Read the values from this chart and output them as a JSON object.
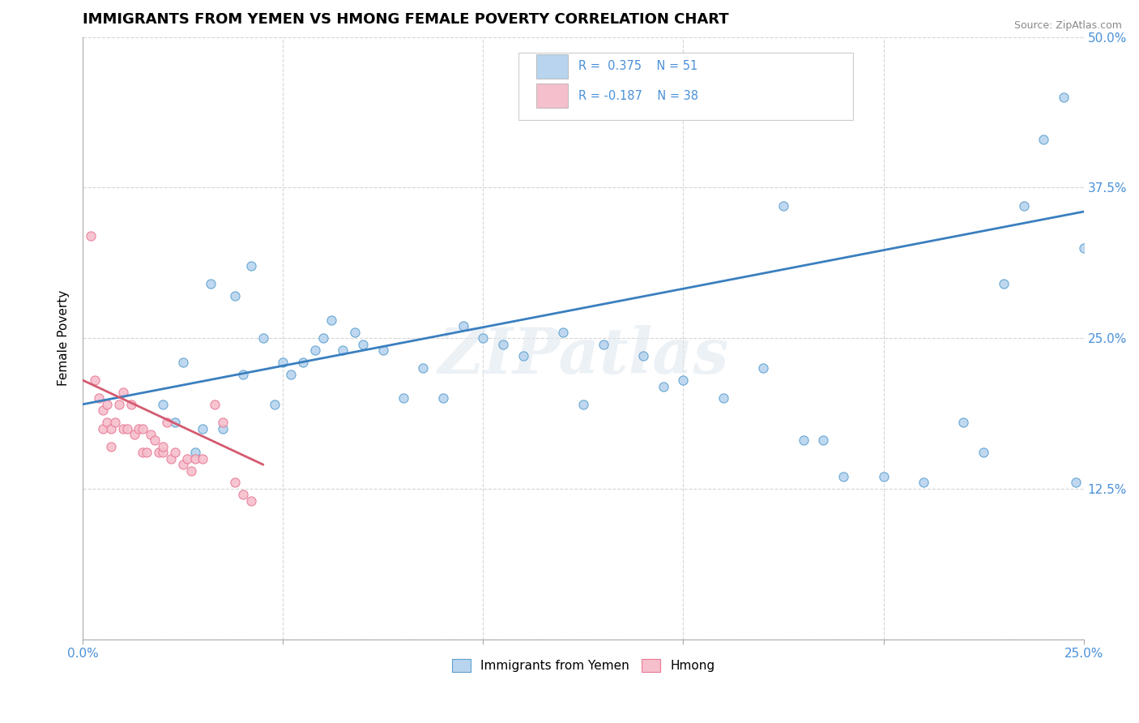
{
  "title": "IMMIGRANTS FROM YEMEN VS HMONG FEMALE POVERTY CORRELATION CHART",
  "source": "Source: ZipAtlas.com",
  "ylabel_label": "Female Poverty",
  "x_ticks": [
    0.0,
    0.05,
    0.1,
    0.15,
    0.2,
    0.25
  ],
  "x_tick_labels": [
    "0.0%",
    "",
    "",
    "",
    "",
    "25.0%"
  ],
  "y_ticks": [
    0.0,
    0.125,
    0.25,
    0.375,
    0.5
  ],
  "y_tick_labels_right": [
    "",
    "12.5%",
    "25.0%",
    "37.5%",
    "50.0%"
  ],
  "xlim": [
    0.0,
    0.25
  ],
  "ylim": [
    0.0,
    0.5
  ],
  "legend_r1": "R =  0.375",
  "legend_n1": "N = 51",
  "legend_r2": "R = -0.187",
  "legend_n2": "N = 38",
  "blue_fill": "#b8d4ee",
  "blue_edge": "#5da0d0",
  "pink_fill": "#f5bfcc",
  "pink_edge": "#e87a95",
  "line_blue": "#3a7fbf",
  "line_pink": "#d45a70",
  "watermark": "ZIPatlas",
  "blue_x": [
    0.02,
    0.023,
    0.025,
    0.028,
    0.03,
    0.032,
    0.035,
    0.038,
    0.04,
    0.042,
    0.045,
    0.048,
    0.05,
    0.052,
    0.055,
    0.058,
    0.06,
    0.062,
    0.065,
    0.068,
    0.07,
    0.075,
    0.08,
    0.085,
    0.09,
    0.095,
    0.1,
    0.105,
    0.11,
    0.12,
    0.125,
    0.13,
    0.14,
    0.145,
    0.15,
    0.16,
    0.17,
    0.175,
    0.18,
    0.185,
    0.19,
    0.2,
    0.21,
    0.22,
    0.225,
    0.23,
    0.235,
    0.24,
    0.245,
    0.248,
    0.25
  ],
  "blue_y": [
    0.195,
    0.18,
    0.23,
    0.155,
    0.175,
    0.295,
    0.175,
    0.285,
    0.22,
    0.31,
    0.25,
    0.195,
    0.23,
    0.22,
    0.23,
    0.24,
    0.25,
    0.265,
    0.24,
    0.255,
    0.245,
    0.24,
    0.2,
    0.225,
    0.2,
    0.26,
    0.25,
    0.245,
    0.235,
    0.255,
    0.195,
    0.245,
    0.235,
    0.21,
    0.215,
    0.2,
    0.225,
    0.36,
    0.165,
    0.165,
    0.135,
    0.135,
    0.13,
    0.18,
    0.155,
    0.295,
    0.36,
    0.415,
    0.45,
    0.13,
    0.325
  ],
  "pink_x": [
    0.002,
    0.003,
    0.004,
    0.005,
    0.005,
    0.006,
    0.006,
    0.007,
    0.007,
    0.008,
    0.009,
    0.01,
    0.01,
    0.011,
    0.012,
    0.013,
    0.014,
    0.015,
    0.015,
    0.016,
    0.017,
    0.018,
    0.019,
    0.02,
    0.02,
    0.021,
    0.022,
    0.023,
    0.025,
    0.026,
    0.027,
    0.028,
    0.03,
    0.033,
    0.035,
    0.038,
    0.04,
    0.042
  ],
  "pink_y": [
    0.335,
    0.215,
    0.2,
    0.19,
    0.175,
    0.18,
    0.195,
    0.175,
    0.16,
    0.18,
    0.195,
    0.205,
    0.175,
    0.175,
    0.195,
    0.17,
    0.175,
    0.175,
    0.155,
    0.155,
    0.17,
    0.165,
    0.155,
    0.155,
    0.16,
    0.18,
    0.15,
    0.155,
    0.145,
    0.15,
    0.14,
    0.15,
    0.15,
    0.195,
    0.18,
    0.13,
    0.12,
    0.115
  ],
  "blue_trend_x": [
    0.0,
    0.25
  ],
  "blue_trend_y": [
    0.195,
    0.355
  ],
  "pink_trend_x": [
    0.0,
    0.045
  ],
  "pink_trend_y": [
    0.215,
    0.145
  ]
}
